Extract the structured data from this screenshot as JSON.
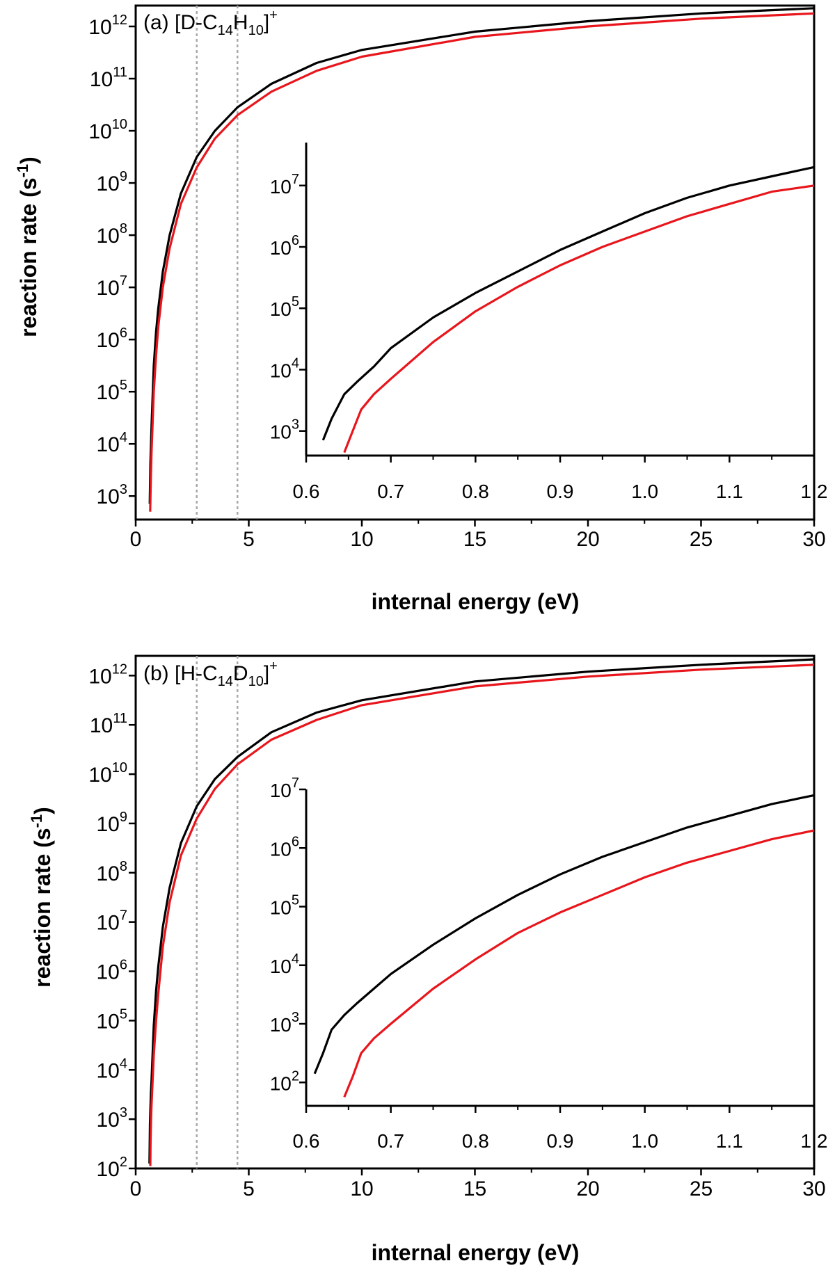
{
  "figure": {
    "panels": [
      {
        "panel_label": "(a) [D-C",
        "formula_parts": {
          "sub1": "14",
          "mid": "H",
          "sub2": "10",
          "close": "]",
          "sup": "+"
        },
        "xlabel": "internal energy (eV)",
        "ylabel": "reaction rate (s",
        "ylabel_sup": "-1",
        "ylabel_close": ")"
      },
      {
        "panel_label": "(b) [H-C",
        "formula_parts": {
          "sub1": "14",
          "mid": "D",
          "sub2": "10",
          "close": "]",
          "sup": "+"
        },
        "xlabel": "internal energy (eV)",
        "ylabel": "reaction rate (s",
        "ylabel_sup": "-1",
        "ylabel_close": ")"
      }
    ]
  },
  "chart_data": [
    {
      "type": "line",
      "panel": "a",
      "title": "(a) [D-C14H10]+",
      "xlabel": "internal energy (eV)",
      "ylabel": "reaction rate (s-1)",
      "yscale": "log",
      "xlim": [
        0,
        30
      ],
      "ylim_exp": [
        2.55,
        12.4
      ],
      "xticks": [
        "0",
        "5",
        "10",
        "15",
        "20",
        "25",
        "30"
      ],
      "yticks": [
        3,
        4,
        5,
        6,
        7,
        8,
        9,
        10,
        11,
        12
      ],
      "vlines": [
        2.7,
        4.5
      ],
      "series": [
        {
          "color": "#000000",
          "x": [
            0.62,
            0.65,
            0.7,
            0.8,
            0.9,
            1.0,
            1.2,
            1.5,
            2.0,
            2.7,
            3.5,
            4.5,
            6,
            8,
            10,
            15,
            20,
            25,
            30
          ],
          "log10_y": [
            2.85,
            3.6,
            4.35,
            5.5,
            6.15,
            6.6,
            7.3,
            8.0,
            8.8,
            9.5,
            10.0,
            10.45,
            10.9,
            11.3,
            11.55,
            11.9,
            12.1,
            12.25,
            12.35
          ]
        },
        {
          "color": "#e8161c",
          "x": [
            0.64,
            0.67,
            0.7,
            0.8,
            0.9,
            1.0,
            1.2,
            1.5,
            2.0,
            2.7,
            3.5,
            4.5,
            6,
            8,
            10,
            15,
            20,
            25,
            30
          ],
          "log10_y": [
            2.7,
            3.35,
            3.85,
            5.0,
            5.7,
            6.25,
            7.0,
            7.75,
            8.6,
            9.3,
            9.85,
            10.3,
            10.75,
            11.15,
            11.42,
            11.8,
            12.0,
            12.15,
            12.25
          ]
        }
      ]
    },
    {
      "type": "line",
      "panel": "a-inset",
      "yscale": "log",
      "xlim": [
        0.6,
        1.2
      ],
      "ylim_exp": [
        2.6,
        7.7
      ],
      "xticks": [
        "0.6",
        "0.7",
        "0.8",
        "0.9",
        "1.0",
        "1.1",
        "1.2"
      ],
      "yticks": [
        3,
        4,
        5,
        6,
        7
      ],
      "series": [
        {
          "color": "#000000",
          "x": [
            0.62,
            0.63,
            0.645,
            0.66,
            0.68,
            0.7,
            0.75,
            0.8,
            0.85,
            0.9,
            0.95,
            1.0,
            1.05,
            1.1,
            1.15,
            1.2
          ],
          "log10_y": [
            2.85,
            3.2,
            3.6,
            3.8,
            4.05,
            4.35,
            4.85,
            5.25,
            5.6,
            5.95,
            6.25,
            6.55,
            6.8,
            7.0,
            7.15,
            7.3
          ]
        },
        {
          "color": "#e8161c",
          "x": [
            0.645,
            0.655,
            0.665,
            0.68,
            0.7,
            0.75,
            0.8,
            0.85,
            0.9,
            0.95,
            1.0,
            1.05,
            1.1,
            1.15,
            1.2
          ],
          "log10_y": [
            2.65,
            3.0,
            3.35,
            3.6,
            3.85,
            4.45,
            4.95,
            5.35,
            5.7,
            6.0,
            6.25,
            6.5,
            6.7,
            6.9,
            7.0
          ]
        }
      ]
    },
    {
      "type": "line",
      "panel": "b",
      "title": "(b) [H-C14D10]+",
      "xlabel": "internal energy (eV)",
      "ylabel": "reaction rate (s-1)",
      "yscale": "log",
      "xlim": [
        0,
        30
      ],
      "ylim_exp": [
        2.0,
        12.4
      ],
      "xticks": [
        "0",
        "5",
        "10",
        "15",
        "20",
        "25",
        "30"
      ],
      "yticks": [
        2,
        3,
        4,
        5,
        6,
        7,
        8,
        9,
        10,
        11,
        12
      ],
      "vlines": [
        2.7,
        4.5
      ],
      "series": [
        {
          "color": "#000000",
          "x": [
            0.61,
            0.63,
            0.67,
            0.7,
            0.8,
            0.9,
            1.0,
            1.2,
            1.5,
            2.0,
            2.7,
            3.5,
            4.5,
            6,
            8,
            10,
            15,
            20,
            25,
            30
          ],
          "log10_y": [
            2.1,
            2.9,
            3.5,
            3.8,
            4.9,
            5.6,
            6.1,
            6.9,
            7.7,
            8.6,
            9.35,
            9.9,
            10.35,
            10.85,
            11.25,
            11.5,
            11.88,
            12.08,
            12.22,
            12.33
          ]
        },
        {
          "color": "#e8161c",
          "x": [
            0.645,
            0.66,
            0.68,
            0.7,
            0.8,
            0.9,
            1.0,
            1.2,
            1.5,
            2.0,
            2.7,
            3.5,
            4.5,
            6,
            8,
            10,
            15,
            20,
            25,
            30
          ],
          "log10_y": [
            2.05,
            2.55,
            3.0,
            3.3,
            4.3,
            5.0,
            5.55,
            6.5,
            7.4,
            8.35,
            9.1,
            9.7,
            10.2,
            10.7,
            11.1,
            11.4,
            11.78,
            11.98,
            12.12,
            12.22
          ]
        }
      ]
    },
    {
      "type": "line",
      "panel": "b-inset",
      "yscale": "log",
      "xlim": [
        0.6,
        1.2
      ],
      "ylim_exp": [
        1.6,
        7.0
      ],
      "xticks": [
        "0.6",
        "0.7",
        "0.8",
        "0.9",
        "1.0",
        "1.1",
        "1.2"
      ],
      "yticks": [
        2,
        3,
        4,
        5,
        6,
        7
      ],
      "series": [
        {
          "color": "#000000",
          "x": [
            0.61,
            0.62,
            0.63,
            0.645,
            0.66,
            0.68,
            0.7,
            0.75,
            0.8,
            0.85,
            0.9,
            0.95,
            1.0,
            1.05,
            1.1,
            1.15,
            1.2
          ],
          "log10_y": [
            2.15,
            2.5,
            2.9,
            3.15,
            3.35,
            3.6,
            3.85,
            4.35,
            4.8,
            5.2,
            5.55,
            5.85,
            6.1,
            6.35,
            6.55,
            6.75,
            6.9
          ]
        },
        {
          "color": "#e8161c",
          "x": [
            0.645,
            0.655,
            0.665,
            0.68,
            0.7,
            0.75,
            0.8,
            0.85,
            0.9,
            0.95,
            1.0,
            1.05,
            1.1,
            1.15,
            1.2
          ],
          "log10_y": [
            1.75,
            2.1,
            2.5,
            2.75,
            3.0,
            3.6,
            4.1,
            4.55,
            4.9,
            5.2,
            5.5,
            5.75,
            5.95,
            6.15,
            6.3
          ]
        }
      ]
    }
  ]
}
